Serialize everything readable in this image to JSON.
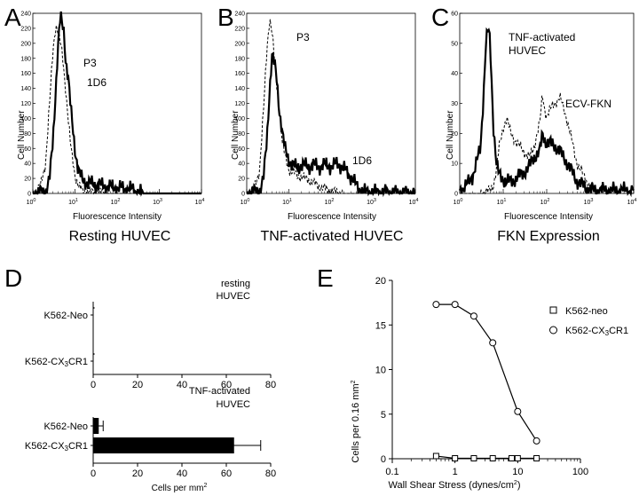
{
  "chart_data": [
    {
      "type": "histogram",
      "panel": "A",
      "title": "Resting HUVEC",
      "xlabel": "Fluorescence Intensity",
      "ylabel": "Cell Number",
      "xscale": "log",
      "xlim": [
        1,
        10000
      ],
      "ylim": [
        0,
        240
      ],
      "yticks": [
        "0",
        "20",
        "40",
        "60",
        "80",
        "100",
        "120",
        "140",
        "160",
        "180",
        "200",
        "220",
        "240"
      ],
      "xticks": [
        {
          "m": "10",
          "e": "0"
        },
        {
          "m": "10",
          "e": "1"
        },
        {
          "m": "10",
          "e": "2"
        },
        {
          "m": "10",
          "e": "3"
        },
        {
          "m": "10",
          "e": "4"
        }
      ],
      "annotations": [
        "P3",
        "1D6"
      ],
      "series": [
        {
          "name": "P3",
          "style": "dashed",
          "x": [
            1,
            1.5,
            2,
            2.5,
            3,
            3.5,
            4,
            5,
            6,
            7,
            8,
            10,
            12,
            15,
            20,
            30,
            50,
            10000
          ],
          "y": [
            0,
            8,
            40,
            120,
            190,
            225,
            215,
            185,
            140,
            95,
            60,
            25,
            10,
            4,
            2,
            1,
            0,
            0
          ]
        },
        {
          "name": "1D6",
          "style": "solid",
          "x": [
            1,
            2,
            2.5,
            3,
            3.5,
            4,
            4.5,
            5,
            5.5,
            6,
            7,
            8,
            10,
            12,
            15,
            20,
            30,
            50,
            80,
            120,
            200,
            300,
            400,
            10000
          ],
          "y": [
            0,
            2,
            20,
            70,
            140,
            200,
            235,
            225,
            215,
            180,
            150,
            110,
            60,
            30,
            18,
            14,
            12,
            10,
            8,
            7,
            6,
            3,
            0,
            0
          ]
        }
      ]
    },
    {
      "type": "histogram",
      "panel": "B",
      "title": "TNF-activated HUVEC",
      "xlabel": "Fluorescence Intensity",
      "ylabel": "Cell Number",
      "xscale": "log",
      "xlim": [
        1,
        10000
      ],
      "ylim": [
        0,
        240
      ],
      "yticks": [
        "0",
        "20",
        "40",
        "60",
        "80",
        "100",
        "120",
        "140",
        "160",
        "180",
        "200",
        "220",
        "240"
      ],
      "xticks": [
        {
          "m": "10",
          "e": "0"
        },
        {
          "m": "10",
          "e": "1"
        },
        {
          "m": "10",
          "e": "2"
        },
        {
          "m": "10",
          "e": "3"
        },
        {
          "m": "10",
          "e": "4"
        }
      ],
      "annotations": [
        "P3",
        "1D6"
      ],
      "series": [
        {
          "name": "P3",
          "style": "dashed",
          "x": [
            1,
            1.5,
            2,
            2.5,
            3,
            3.5,
            4,
            5,
            6,
            7,
            8,
            10,
            15,
            20,
            30,
            50,
            80,
            120,
            200,
            10000
          ],
          "y": [
            0,
            5,
            30,
            110,
            190,
            235,
            215,
            150,
            110,
            70,
            50,
            32,
            25,
            22,
            18,
            10,
            5,
            2,
            0,
            0
          ]
        },
        {
          "name": "1D6",
          "style": "solid",
          "x": [
            1,
            2,
            2.5,
            3,
            3.5,
            4,
            5,
            6,
            7,
            8,
            10,
            12,
            15,
            20,
            30,
            40,
            50,
            70,
            100,
            150,
            200,
            300,
            400,
            600,
            10000
          ],
          "y": [
            0,
            3,
            20,
            70,
            140,
            185,
            160,
            110,
            80,
            60,
            45,
            38,
            35,
            38,
            36,
            38,
            35,
            38,
            36,
            40,
            33,
            22,
            10,
            2,
            0
          ]
        }
      ]
    },
    {
      "type": "histogram",
      "panel": "C",
      "title": "FKN Expression",
      "xlabel": "Fluorescence Intensity",
      "ylabel": "Cell Number",
      "xscale": "log",
      "xlim": [
        1,
        10000
      ],
      "ylim": [
        0,
        60
      ],
      "yticks": [
        "0",
        "10",
        "20",
        "30",
        "40",
        "50",
        "60"
      ],
      "xticks": [
        {
          "m": "10",
          "e": "0"
        },
        {
          "m": "10",
          "e": "1"
        },
        {
          "m": "10",
          "e": "2"
        },
        {
          "m": "10",
          "e": "3"
        },
        {
          "m": "10",
          "e": "4"
        }
      ],
      "annotations": [
        "TNF-activated",
        "HUVEC",
        "ECV-FKN"
      ],
      "series": [
        {
          "name": "TNF-activated HUVEC",
          "style": "solid",
          "x": [
            1,
            1.5,
            2,
            3,
            3.5,
            4,
            4.5,
            5,
            5.5,
            6,
            7,
            8,
            10,
            12,
            15,
            20,
            30,
            40,
            50,
            70,
            80,
            90,
            100,
            150,
            200,
            300,
            500,
            1000,
            2000,
            10000
          ],
          "y": [
            1,
            3,
            6,
            15,
            32,
            50,
            55,
            50,
            35,
            22,
            10,
            6,
            5,
            4,
            4,
            5,
            7,
            9,
            12,
            14,
            20,
            18,
            17,
            16,
            14,
            10,
            4,
            1,
            1,
            1
          ]
        },
        {
          "name": "ECV-FKN",
          "style": "dashed",
          "x": [
            1,
            3,
            5,
            6,
            7,
            8,
            10,
            12,
            15,
            20,
            30,
            40,
            50,
            60,
            70,
            80,
            90,
            100,
            150,
            200,
            250,
            300,
            500,
            1000,
            2000,
            5000,
            10000
          ],
          "y": [
            0,
            0,
            1,
            3,
            8,
            15,
            22,
            25,
            20,
            17,
            14,
            12,
            15,
            20,
            24,
            33,
            28,
            26,
            30,
            32,
            28,
            24,
            10,
            2,
            1,
            0,
            0
          ]
        }
      ]
    },
    {
      "type": "bar",
      "panel": "D",
      "orientation": "horizontal",
      "title": "",
      "xlabel": "Cells per mm",
      "xlabel_sup": "2",
      "xlim": [
        0,
        80
      ],
      "xticks": [
        "0",
        "20",
        "40",
        "60",
        "80"
      ],
      "groups": [
        {
          "name_lines": [
            "resting",
            "HUVEC"
          ],
          "categories": [
            {
              "parts": [
                "K562-Neo"
              ]
            },
            {
              "parts": [
                "K562-CX",
                "3",
                "CR1"
              ]
            }
          ],
          "values": [
            0,
            0
          ],
          "errors": [
            0,
            0
          ]
        },
        {
          "name_lines": [
            "TNF-activated",
            "HUVEC"
          ],
          "categories": [
            {
              "parts": [
                "K562-Neo"
              ]
            },
            {
              "parts": [
                "K562-CX",
                "3",
                "CR1"
              ]
            }
          ],
          "values": [
            2.5,
            63.5
          ],
          "errors": [
            2,
            12
          ]
        }
      ]
    },
    {
      "type": "line",
      "panel": "E",
      "xlabel": "Wall Shear Stress (dynes/cm",
      "xlabel_sup": "2",
      "xlabel_close": ")",
      "ylabel": "Cells per 0.16 mm",
      "ylabel_sup": "2",
      "xscale": "log",
      "xlim": [
        0.1,
        100
      ],
      "ylim": [
        0,
        20
      ],
      "xticks": [
        "0.1",
        "1",
        "10",
        "100"
      ],
      "yticks": [
        "0",
        "5",
        "10",
        "15",
        "20"
      ],
      "series": [
        {
          "name_parts": [
            "K562-neo"
          ],
          "marker": "square",
          "x": [
            0.5,
            1,
            2,
            4,
            8,
            10,
            20
          ],
          "y": [
            0.3,
            0.05,
            0.05,
            0.05,
            0.05,
            0.05,
            0.05
          ]
        },
        {
          "name_parts": [
            "K562-CX",
            "3",
            "CR1"
          ],
          "marker": "circle",
          "x": [
            0.5,
            1,
            2,
            4,
            10,
            20
          ],
          "y": [
            17.3,
            17.3,
            16,
            13,
            5.3,
            2
          ]
        }
      ]
    }
  ]
}
